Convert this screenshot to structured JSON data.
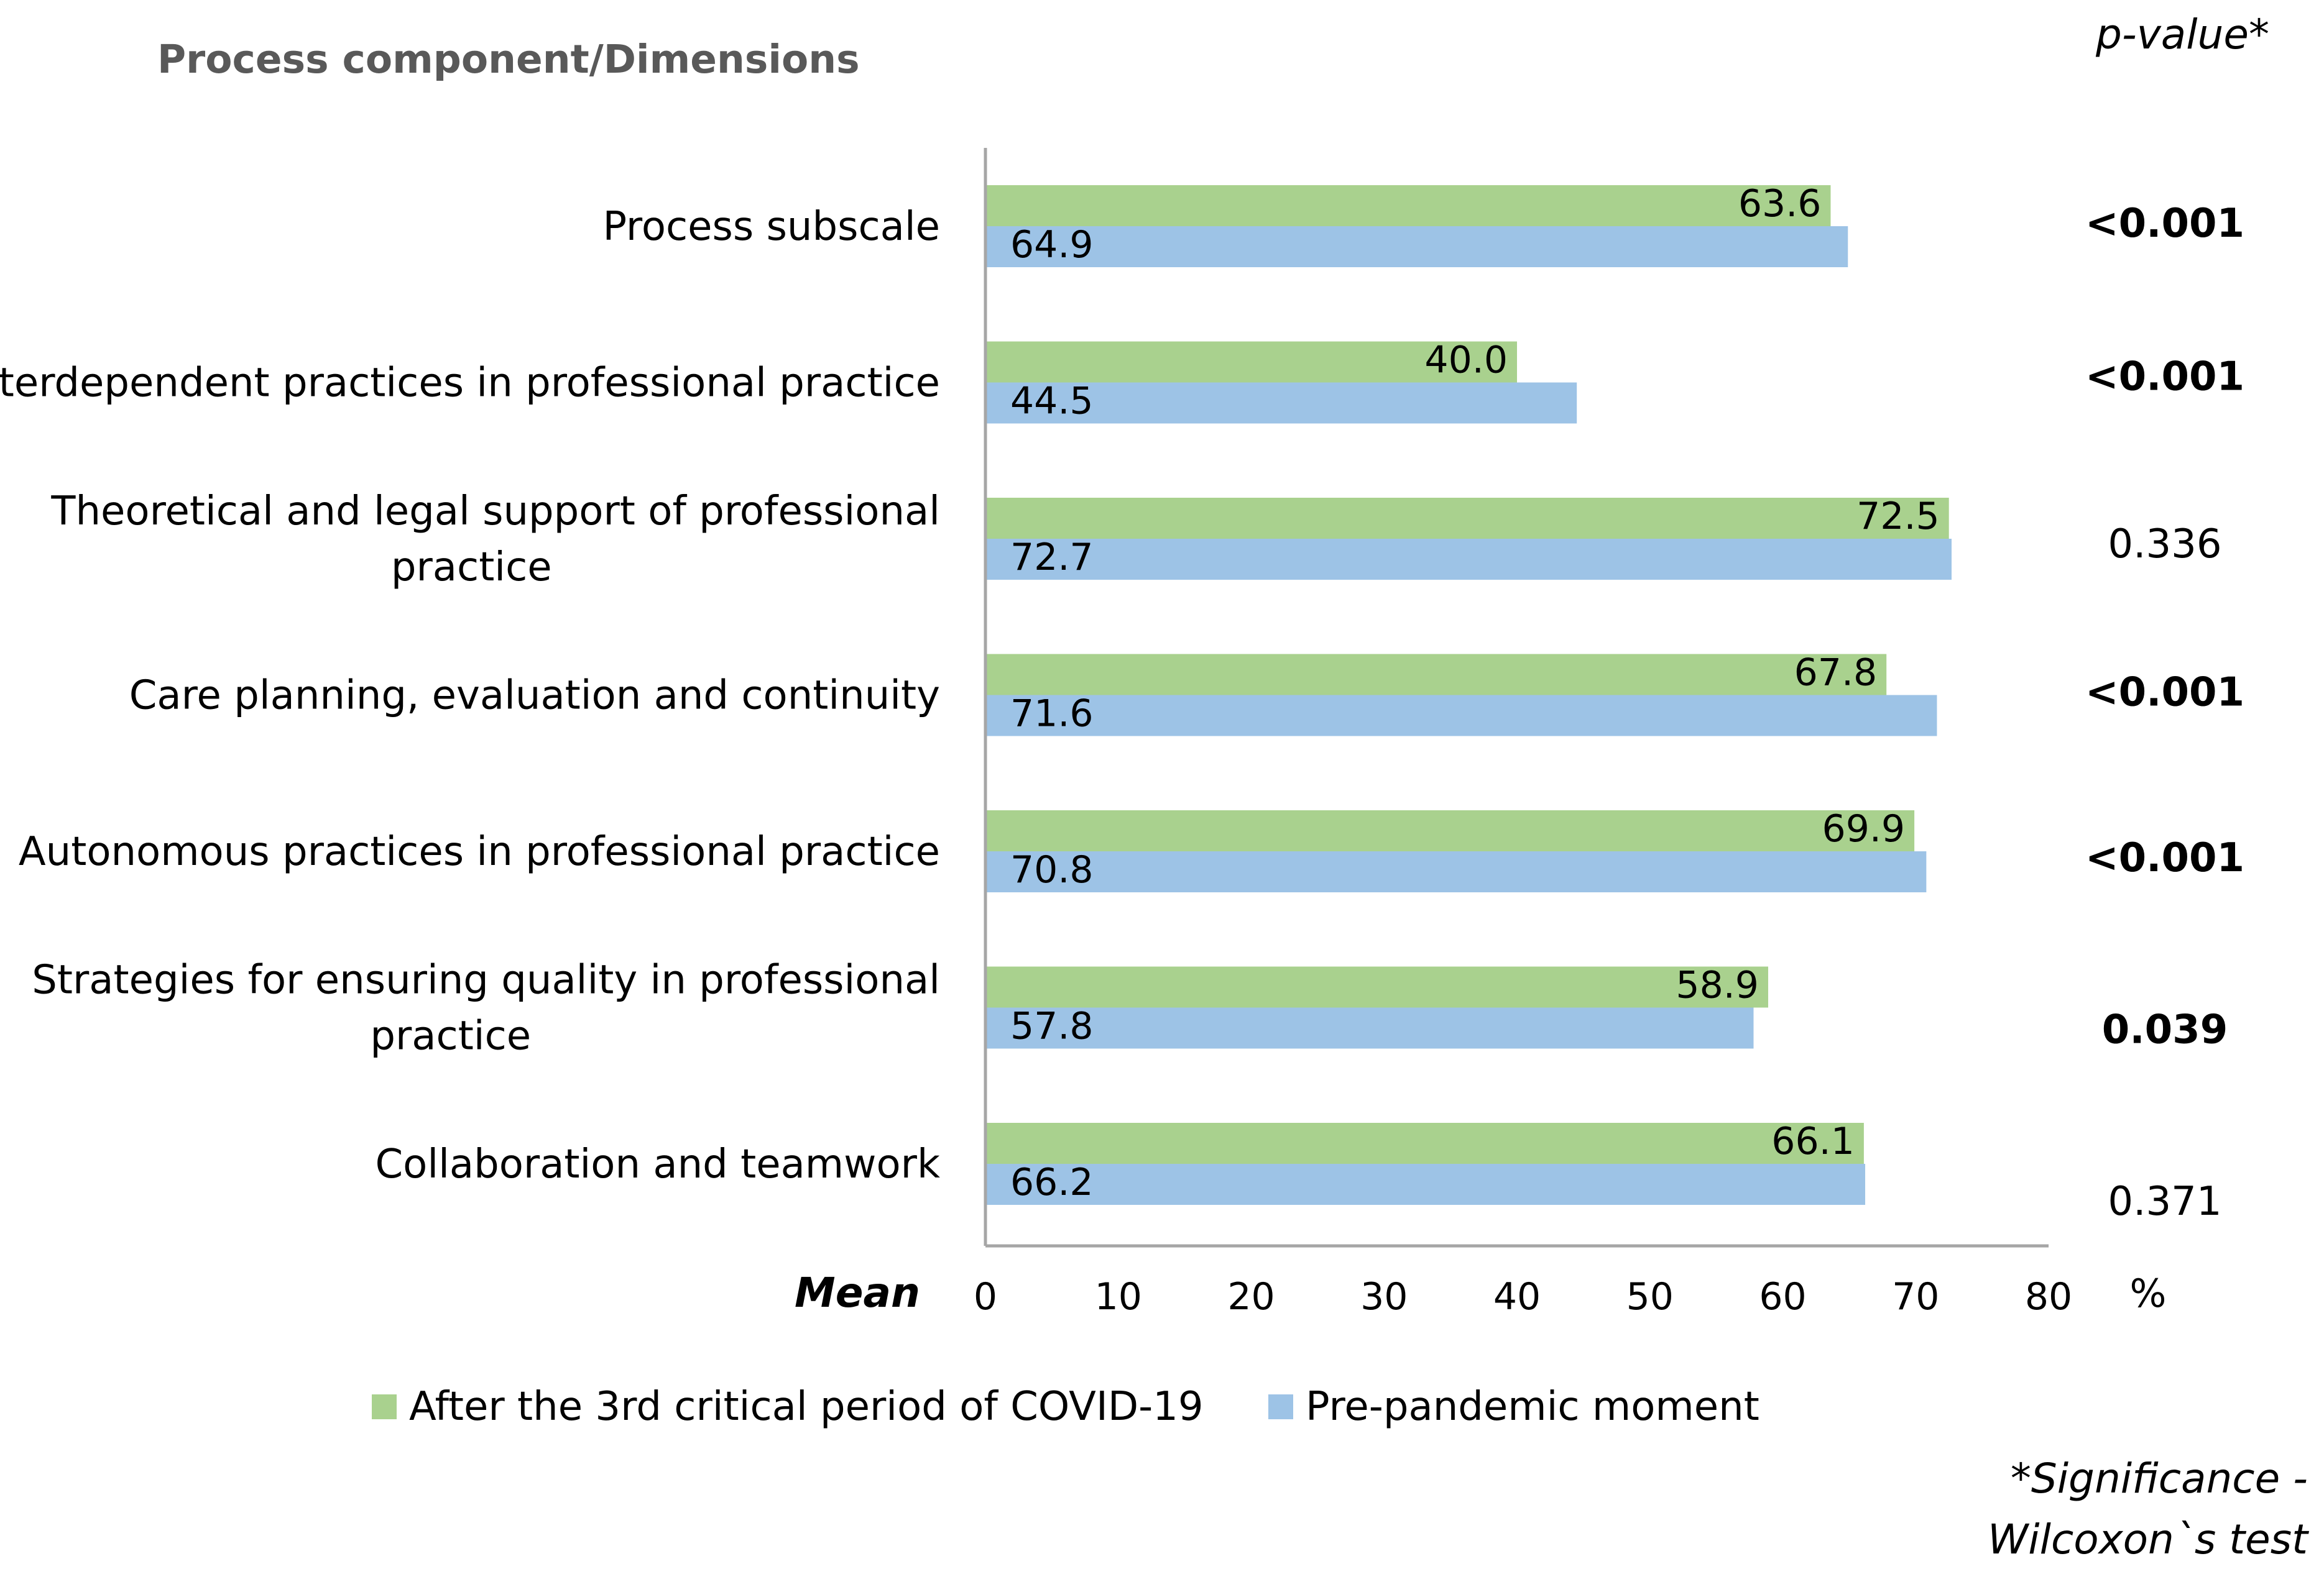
{
  "chart_data": {
    "type": "bar",
    "orientation": "horizontal",
    "title": "Process component/Dimensions",
    "pvalue_header": "p-value*",
    "xlabel": "Mean",
    "xunit": "%",
    "xlim": [
      0,
      80
    ],
    "xticks": [
      0,
      10,
      20,
      30,
      40,
      50,
      60,
      70,
      80
    ],
    "categories": [
      [
        "Process subscale"
      ],
      [
        "Interdependent practices in professional practice"
      ],
      [
        "Theoretical and legal support of professional",
        "practice"
      ],
      [
        "Care planning, evaluation and continuity"
      ],
      [
        "Autonomous practices in professional practice"
      ],
      [
        "Strategies for ensuring quality in professional",
        "practice"
      ],
      [
        "Collaboration and teamwork"
      ]
    ],
    "series": [
      {
        "name": "After the 3rd critical period of COVID-19",
        "color": "#a9d18e",
        "values": [
          "63.6",
          "40.0",
          "72.5",
          "67.8",
          "69.9",
          "58.9",
          "66.1"
        ]
      },
      {
        "name": "Pre-pandemic moment",
        "color": "#9dc3e6",
        "values": [
          "64.9",
          "44.5",
          "72.7",
          "71.6",
          "70.8",
          "57.8",
          "66.2"
        ]
      }
    ],
    "p_values": [
      "<0.001",
      "<0.001",
      "0.336",
      "<0.001",
      "<0.001",
      "0.039",
      "0.371"
    ],
    "p_values_bold": [
      true,
      true,
      false,
      true,
      true,
      true,
      false
    ],
    "footnote": [
      "*Significance -",
      "Wilcoxon`s test"
    ],
    "legend_position": "bottom"
  }
}
